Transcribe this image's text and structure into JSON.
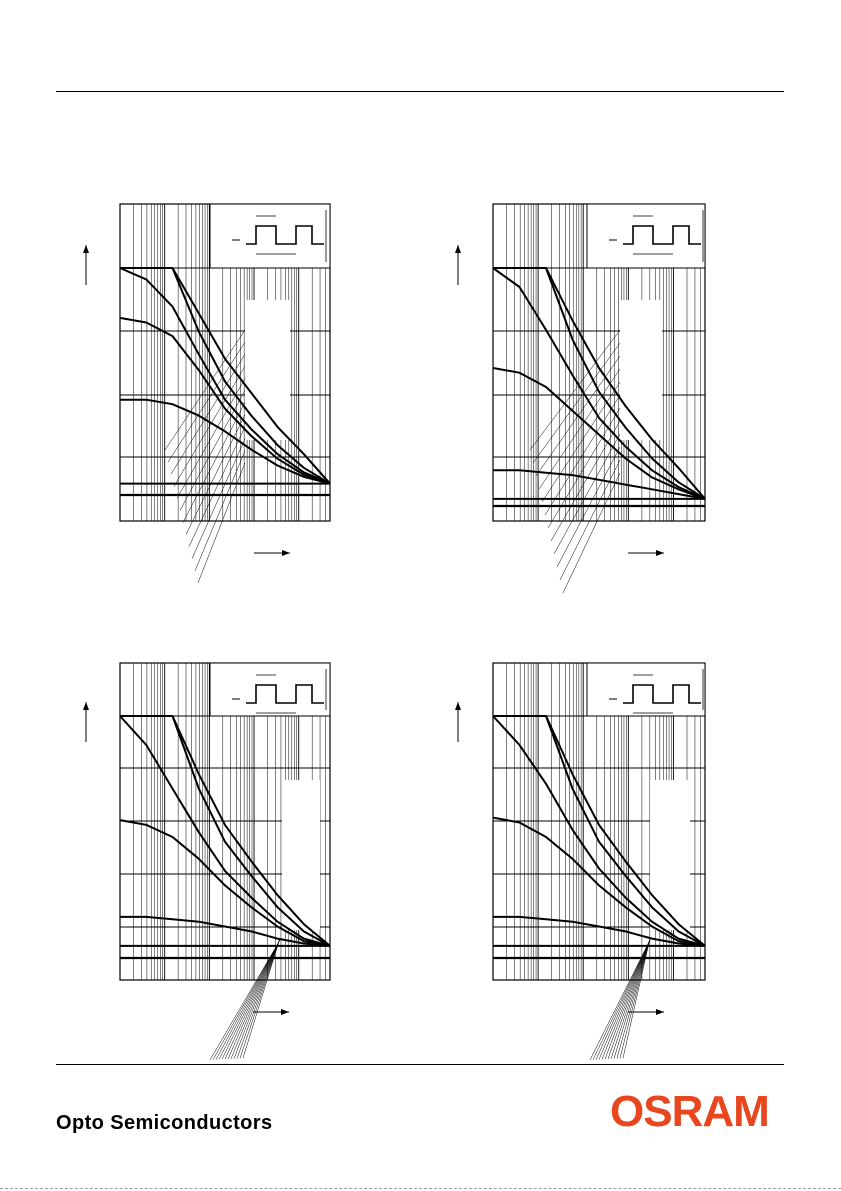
{
  "footer": {
    "company_line": "Opto Semiconductors",
    "brand": "OSRAM",
    "brand_color": "#E8461E"
  },
  "chart_data": [
    {
      "type": "line",
      "panel": "top-left",
      "x_scale": "log",
      "series": [
        {
          "values": [
            1.0,
            1.0,
            1.0,
            0.8,
            0.6,
            0.45,
            0.3,
            0.18,
            0.05
          ]
        },
        {
          "values": [
            1.0,
            1.0,
            1.0,
            0.72,
            0.5,
            0.35,
            0.22,
            0.12,
            0.05
          ]
        },
        {
          "values": [
            1.0,
            0.95,
            0.83,
            0.62,
            0.42,
            0.29,
            0.18,
            0.1,
            0.05
          ]
        },
        {
          "values": [
            0.78,
            0.76,
            0.7,
            0.55,
            0.38,
            0.26,
            0.16,
            0.09,
            0.05
          ]
        },
        {
          "values": [
            0.42,
            0.42,
            0.4,
            0.35,
            0.28,
            0.2,
            0.13,
            0.08,
            0.05
          ]
        },
        {
          "values": [
            0.05,
            0.05,
            0.05,
            0.05,
            0.05,
            0.05,
            0.05,
            0.05,
            0.05
          ]
        }
      ]
    },
    {
      "type": "line",
      "panel": "top-right",
      "x_scale": "log",
      "series": [
        {
          "values": [
            1.0,
            1.0,
            1.0,
            0.78,
            0.58,
            0.42,
            0.28,
            0.16,
            0.03
          ]
        },
        {
          "values": [
            1.0,
            1.0,
            1.0,
            0.7,
            0.48,
            0.33,
            0.2,
            0.1,
            0.03
          ]
        },
        {
          "values": [
            1.0,
            0.92,
            0.74,
            0.55,
            0.37,
            0.25,
            0.15,
            0.08,
            0.03
          ]
        },
        {
          "values": [
            0.58,
            0.56,
            0.5,
            0.4,
            0.3,
            0.2,
            0.12,
            0.07,
            0.03
          ]
        },
        {
          "values": [
            0.15,
            0.15,
            0.14,
            0.13,
            0.11,
            0.09,
            0.07,
            0.05,
            0.03
          ]
        },
        {
          "values": [
            0.03,
            0.03,
            0.03,
            0.03,
            0.03,
            0.03,
            0.03,
            0.03,
            0.03
          ]
        }
      ]
    },
    {
      "type": "line",
      "panel": "bottom-left",
      "x_scale": "log",
      "series": [
        {
          "values": [
            1.0,
            1.0,
            1.0,
            0.76,
            0.55,
            0.4,
            0.26,
            0.14,
            0.05
          ]
        },
        {
          "values": [
            1.0,
            1.0,
            1.0,
            0.7,
            0.48,
            0.34,
            0.21,
            0.11,
            0.05
          ]
        },
        {
          "values": [
            1.0,
            0.88,
            0.7,
            0.52,
            0.36,
            0.25,
            0.15,
            0.08,
            0.05
          ]
        },
        {
          "values": [
            0.57,
            0.55,
            0.5,
            0.41,
            0.3,
            0.21,
            0.13,
            0.07,
            0.05
          ]
        },
        {
          "values": [
            0.17,
            0.17,
            0.16,
            0.15,
            0.13,
            0.11,
            0.08,
            0.06,
            0.05
          ]
        },
        {
          "values": [
            0.05,
            0.05,
            0.05,
            0.05,
            0.05,
            0.05,
            0.05,
            0.05,
            0.05
          ]
        }
      ]
    },
    {
      "type": "line",
      "panel": "bottom-right",
      "x_scale": "log",
      "series": [
        {
          "values": [
            1.0,
            1.0,
            1.0,
            0.76,
            0.55,
            0.4,
            0.26,
            0.14,
            0.05
          ]
        },
        {
          "values": [
            1.0,
            1.0,
            1.0,
            0.7,
            0.48,
            0.34,
            0.21,
            0.11,
            0.05
          ]
        },
        {
          "values": [
            1.0,
            0.88,
            0.72,
            0.53,
            0.37,
            0.25,
            0.15,
            0.08,
            0.05
          ]
        },
        {
          "values": [
            0.58,
            0.56,
            0.5,
            0.41,
            0.3,
            0.21,
            0.13,
            0.07,
            0.05
          ]
        },
        {
          "values": [
            0.17,
            0.17,
            0.16,
            0.15,
            0.13,
            0.11,
            0.08,
            0.06,
            0.05
          ]
        },
        {
          "values": [
            0.05,
            0.05,
            0.05,
            0.05,
            0.05,
            0.05,
            0.05,
            0.05,
            0.05
          ]
        }
      ]
    }
  ]
}
